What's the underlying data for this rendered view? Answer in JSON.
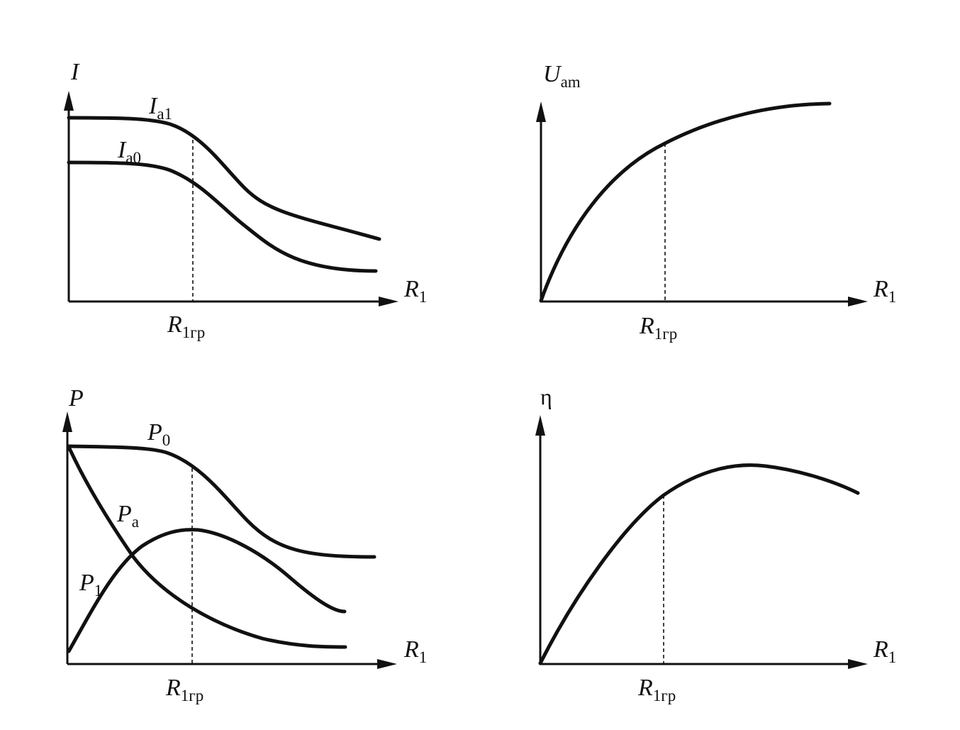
{
  "panels": {
    "current": {
      "y_axis": "I",
      "x_axis": {
        "base": "R",
        "sub": "1"
      },
      "critical": {
        "base": "R",
        "sub": "1гр"
      },
      "curves": {
        "ia1": {
          "base": "I",
          "sub": "a1"
        },
        "ia0": {
          "base": "I",
          "sub": "a0"
        }
      }
    },
    "voltage": {
      "y_axis": {
        "base": "U",
        "sub": "am"
      },
      "x_axis": {
        "base": "R",
        "sub": "1"
      },
      "critical": {
        "base": "R",
        "sub": "1гр"
      }
    },
    "power": {
      "y_axis": "P",
      "x_axis": {
        "base": "R",
        "sub": "1"
      },
      "critical": {
        "base": "R",
        "sub": "1гр"
      },
      "curves": {
        "p0": {
          "base": "P",
          "sub": "0"
        },
        "pa": {
          "base": "P",
          "sub": "a"
        },
        "p1": {
          "base": "P",
          "sub": "1"
        }
      }
    },
    "efficiency": {
      "y_axis": "η",
      "x_axis": {
        "base": "R",
        "sub": "1"
      },
      "critical": {
        "base": "R",
        "sub": "1гр"
      }
    }
  }
}
